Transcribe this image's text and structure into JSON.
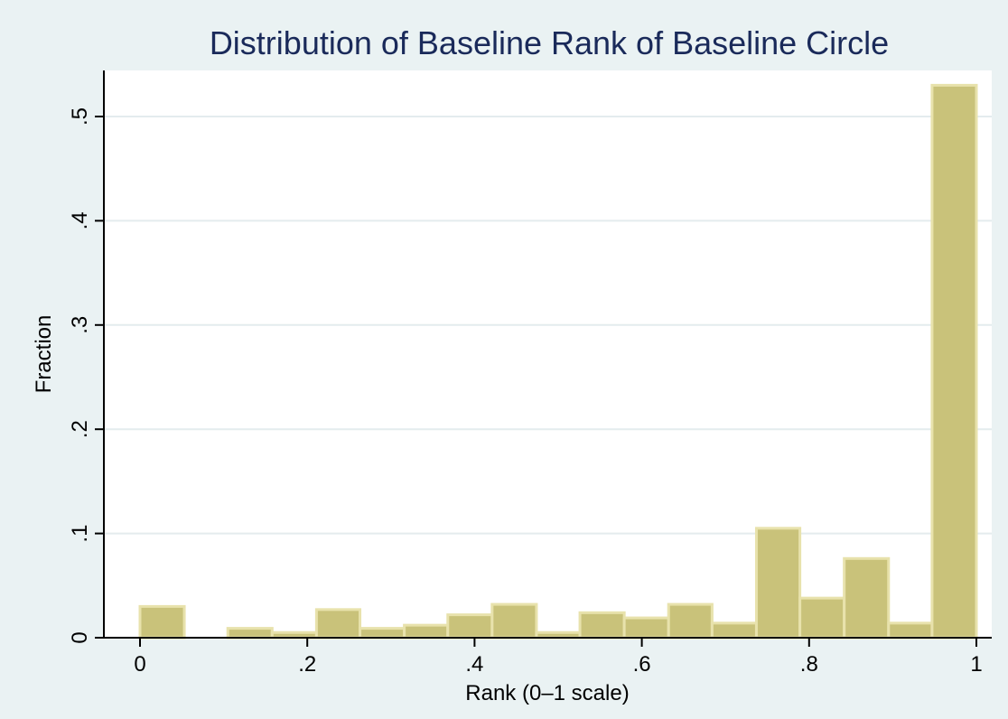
{
  "chart_data": {
    "type": "bar",
    "title": "Distribution of Baseline Rank of Baseline Circle",
    "xlabel": "Rank (0–1 scale)",
    "ylabel": "Fraction",
    "xlim": [
      0,
      1
    ],
    "ylim": [
      0,
      0.55
    ],
    "grid": true,
    "bar_color": "#c9c27a",
    "bar_edge_color": "#e8e2ac",
    "plot_bg": "#ffffff",
    "page_bg": "#eaf2f3",
    "title_color": "#1a2a5a",
    "x_ticks": [
      {
        "value": 0,
        "label": "0"
      },
      {
        "value": 0.2,
        "label": ".2"
      },
      {
        "value": 0.4,
        "label": ".4"
      },
      {
        "value": 0.6,
        "label": ".6"
      },
      {
        "value": 0.8,
        "label": ".8"
      },
      {
        "value": 1,
        "label": "1"
      }
    ],
    "y_ticks": [
      {
        "value": 0,
        "label": "0"
      },
      {
        "value": 0.1,
        "label": ".1"
      },
      {
        "value": 0.2,
        "label": ".2"
      },
      {
        "value": 0.3,
        "label": ".3"
      },
      {
        "value": 0.4,
        "label": ".4"
      },
      {
        "value": 0.5,
        "label": ".5"
      }
    ],
    "bins": [
      {
        "x0": 0.0,
        "x1": 0.053,
        "value": 0.03
      },
      {
        "x0": 0.105,
        "x1": 0.158,
        "value": 0.009
      },
      {
        "x0": 0.158,
        "x1": 0.211,
        "value": 0.005
      },
      {
        "x0": 0.211,
        "x1": 0.263,
        "value": 0.027
      },
      {
        "x0": 0.263,
        "x1": 0.316,
        "value": 0.009
      },
      {
        "x0": 0.316,
        "x1": 0.368,
        "value": 0.012
      },
      {
        "x0": 0.368,
        "x1": 0.421,
        "value": 0.022
      },
      {
        "x0": 0.421,
        "x1": 0.474,
        "value": 0.032
      },
      {
        "x0": 0.474,
        "x1": 0.526,
        "value": 0.005
      },
      {
        "x0": 0.526,
        "x1": 0.579,
        "value": 0.024
      },
      {
        "x0": 0.579,
        "x1": 0.632,
        "value": 0.019
      },
      {
        "x0": 0.632,
        "x1": 0.684,
        "value": 0.032
      },
      {
        "x0": 0.684,
        "x1": 0.737,
        "value": 0.014
      },
      {
        "x0": 0.737,
        "x1": 0.789,
        "value": 0.105
      },
      {
        "x0": 0.789,
        "x1": 0.842,
        "value": 0.038
      },
      {
        "x0": 0.842,
        "x1": 0.895,
        "value": 0.076
      },
      {
        "x0": 0.895,
        "x1": 0.947,
        "value": 0.014
      },
      {
        "x0": 0.947,
        "x1": 1.0,
        "value": 0.53
      }
    ]
  }
}
